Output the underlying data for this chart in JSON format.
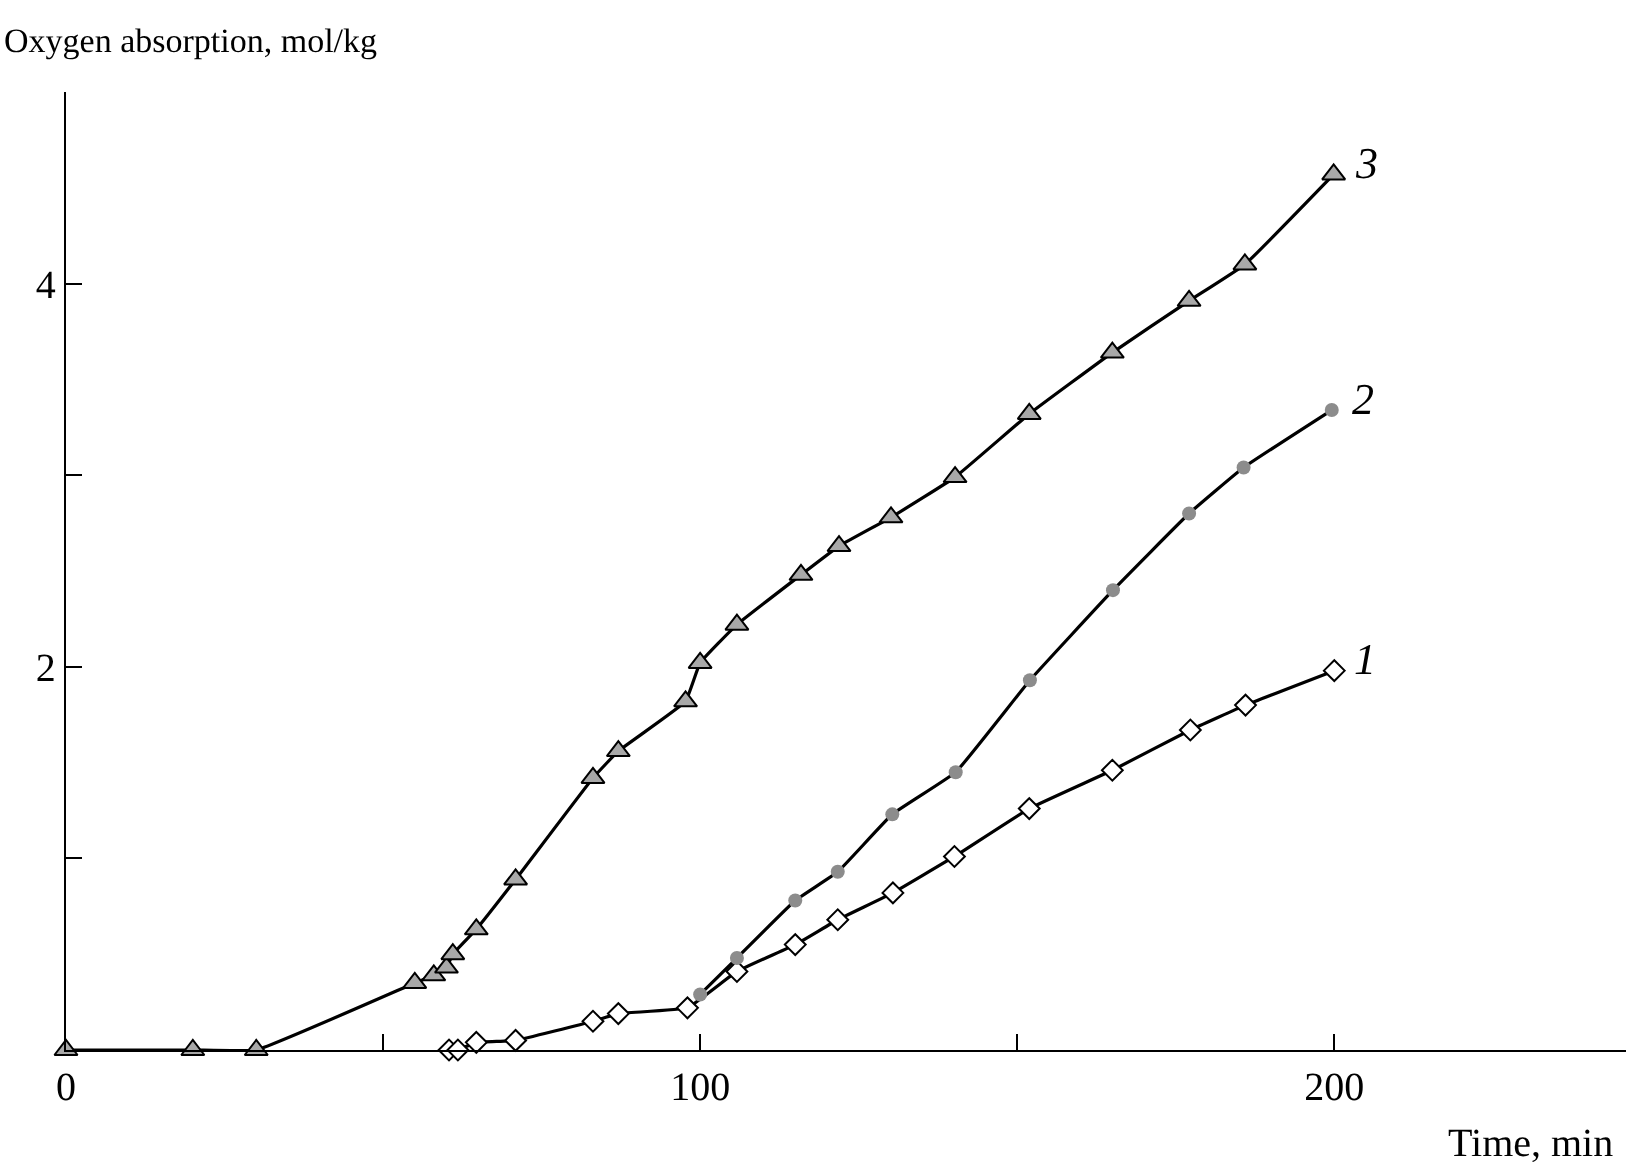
{
  "chart_data": {
    "type": "line",
    "xlabel": "Time, min",
    "ylabel": "Oxygen absorption, mol/kg",
    "xlim": [
      0,
      246
    ],
    "ylim": [
      0,
      5
    ],
    "xticks": [
      0,
      {
        "value": 50,
        "label": null
      },
      100,
      {
        "value": 150,
        "label": null
      },
      200
    ],
    "yticks": [
      {
        "value": 1,
        "label": null
      },
      2,
      {
        "value": 3,
        "label": null
      },
      4
    ],
    "line_style": "solid",
    "series": [
      {
        "name": "1",
        "color": "#ffffff",
        "marker": "diamond",
        "x": [
          60.4,
          61.8,
          64.7,
          70.9,
          83.1,
          87.1,
          98,
          105.8,
          115,
          121.7,
          130.4,
          140.1,
          151.9,
          165,
          177.3,
          186,
          200
        ],
        "values": [
          0,
          0,
          0.04,
          0.05,
          0.15,
          0.19,
          0.22,
          0.41,
          0.55,
          0.68,
          0.82,
          1.01,
          1.26,
          1.46,
          1.67,
          1.8,
          1.98
        ]
      },
      {
        "name": "2",
        "color": "#8c8c8c",
        "marker": "circle",
        "x": [
          100,
          105.8,
          115,
          121.7,
          130.3,
          140.3,
          152,
          165.1,
          177.1,
          185.7,
          199.6
        ],
        "values": [
          0.29,
          0.48,
          0.78,
          0.93,
          1.23,
          1.45,
          1.93,
          2.4,
          2.8,
          3.04,
          3.34
        ]
      },
      {
        "name": "3",
        "color": "#a8a8a8",
        "marker": "triangle",
        "x": [
          0,
          20,
          30,
          55,
          58,
          60,
          61,
          64.7,
          70.9,
          83.1,
          87.1,
          97.7,
          100,
          105.8,
          115.9,
          121.9,
          130.1,
          140.2,
          151.9,
          165,
          177.1,
          185.9,
          199.9
        ],
        "values": [
          0,
          0,
          0,
          0.35,
          0.39,
          0.43,
          0.5,
          0.63,
          0.89,
          1.42,
          1.56,
          1.82,
          2.02,
          2.22,
          2.48,
          2.63,
          2.78,
          2.99,
          3.32,
          3.64,
          3.91,
          4.1,
          4.57
        ]
      }
    ]
  }
}
